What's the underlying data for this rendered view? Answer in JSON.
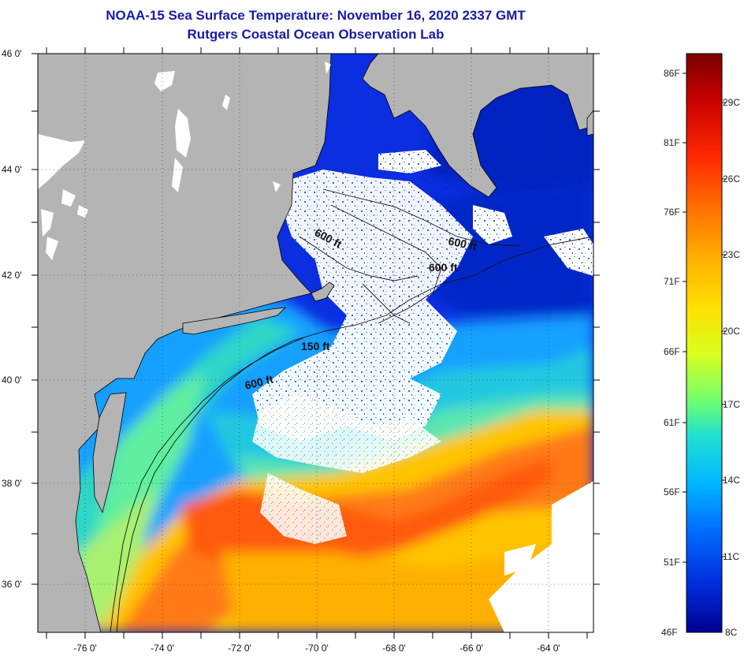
{
  "title": "NOAA-15 Sea Surface Temperature:  November 16, 2020 2337 GMT",
  "subtitle": "Rutgers Coastal Ocean Observation Lab",
  "map": {
    "lon_labels": [
      "-76 0'",
      "-74 0'",
      "-72 0'",
      "-70 0'",
      "-68 0'",
      "-66 0'",
      "-64 0'"
    ],
    "lat_labels": [
      "46 0'",
      "44 0'",
      "42 0'",
      "40 0'",
      "38 0'",
      "36 0'"
    ],
    "contour_labels": [
      "600 ft",
      "600 ft",
      "600 ft",
      "150 ft",
      "600 ft"
    ],
    "land_color": "#b4b4b4",
    "cloud_color": "#ffffff"
  },
  "colorbar": {
    "fahrenheit_labels": [
      "86F",
      "81F",
      "76F",
      "71F",
      "66F",
      "61F",
      "56F",
      "51F",
      "46F"
    ],
    "celsius_labels": [
      "29C",
      "26C",
      "23C",
      "20C",
      "17C",
      "14C",
      "11C",
      "8C"
    ],
    "colors": [
      "#7a0000",
      "#c80000",
      "#ff2a00",
      "#ff7a00",
      "#ffb400",
      "#ffe000",
      "#d8ff20",
      "#70ff70",
      "#20e0d0",
      "#00b8ff",
      "#0070ff",
      "#0030e0",
      "#000090"
    ]
  }
}
